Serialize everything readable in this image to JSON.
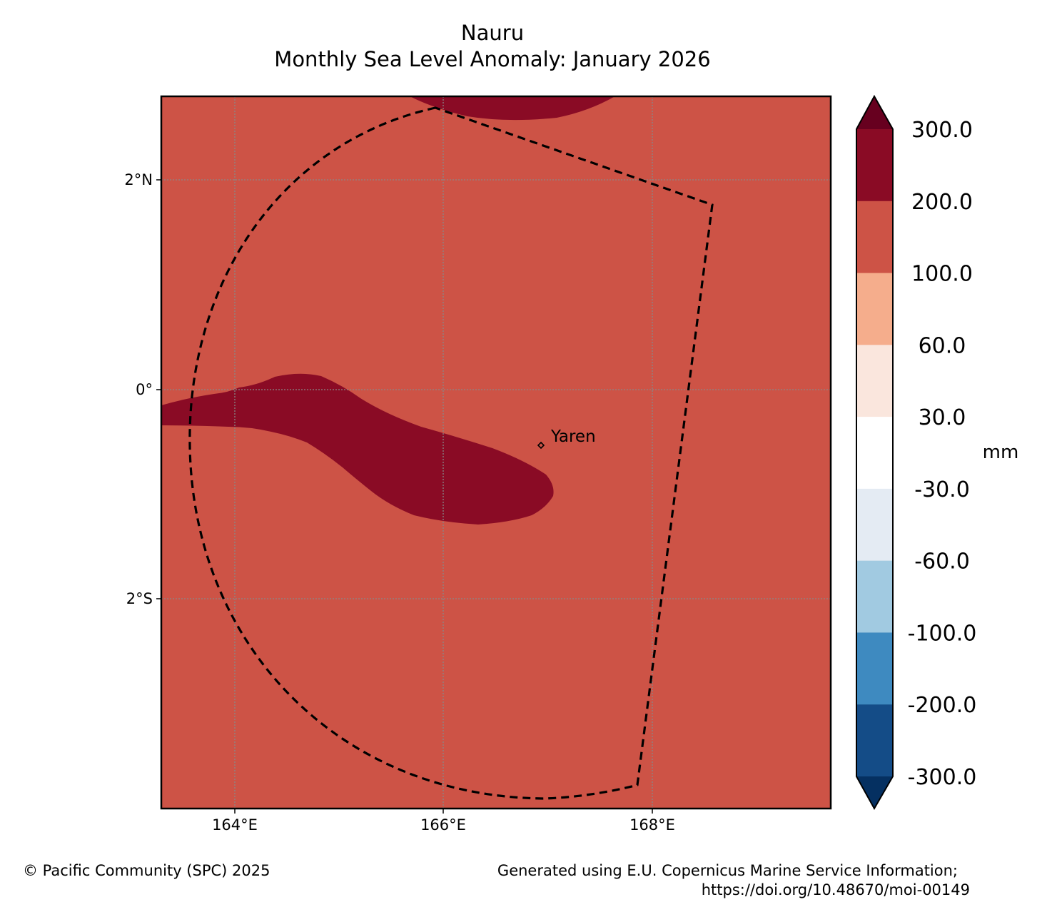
{
  "title": {
    "line1": "Nauru",
    "line2": "Monthly Sea Level Anomaly: January 2026"
  },
  "map": {
    "lat_labels": [
      "2°N",
      "0°",
      "2°S"
    ],
    "lon_labels": [
      "164°E",
      "166°E",
      "168°E"
    ],
    "place_label": "Yaren",
    "background_color": "#cd5346",
    "anomaly_color": "#8a0b25"
  },
  "colorbar": {
    "unit": "mm",
    "tick_labels": [
      "300.0",
      "200.0",
      "100.0",
      "60.0",
      "30.0",
      "-30.0",
      "-60.0",
      "-100.0",
      "-200.0",
      "-300.0"
    ],
    "colors": [
      "#8a0b25",
      "#cd5346",
      "#f5ad8c",
      "#fae6dd",
      "#ffffff",
      "#e4ebf3",
      "#a1cae1",
      "#3e8ac0",
      "#144c87"
    ],
    "extend_top_color": "#67001f",
    "extend_bottom_color": "#053061"
  },
  "footer": {
    "copyright": "© Pacific Community (SPC) 2025",
    "credit_line1": "Generated using E.U. Copernicus Marine Service Information;",
    "credit_line2": "https://doi.org/10.48670/moi-00149"
  }
}
